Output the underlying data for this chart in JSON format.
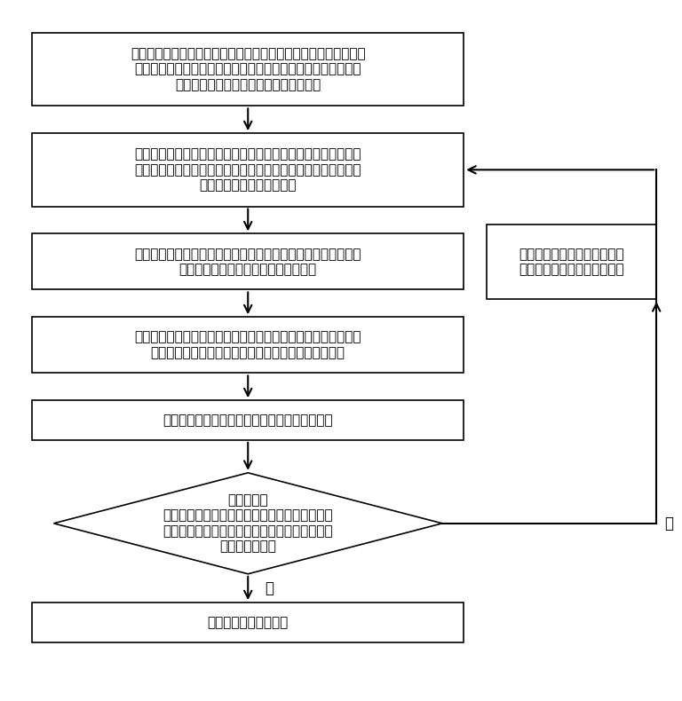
{
  "background_color": "#ffffff",
  "text_color": "#000000",
  "box_border_color": "#000000",
  "arrow_color": "#000000",
  "box1_text": "获取脉冲电源系统的参数，包括脉冲发电机组中脉冲发电机数量、\n脉冲发电机额定储能量、脉冲发电机一次放电能量、脉冲发电机\n无法通过充能电机发电回馈的剩余能量；",
  "box2_text": "基于获取的系统放电信号，将脉冲电源系统中各脉冲发电机分别\n进行放电，并将放电后脉冲发电机组中具有可用剩余能量的脉冲\n发电机作为第一发电机集合",
  "box3_text": "对第一发电机集合中的脉冲发电机进行分组，每组脉冲发电机中\n可用剩余能量之和在设定第一阈值区间",
  "box4_text": "将每一组的脉冲发电机剩余能量分别转移至组中任一脉冲发电机\n，将具有可用剩余能量脉冲发电机作为第二发电机集合",
  "box5_text": "将第二发电机集合中各脉冲发电机分别进行放电",
  "box6_text": "判断放电后\n所有脉冲发电机的可用剩余能量与无法通过充能\n电机发电回馈的剩余能量之和是否大于设定第一\n阈值区间下限？",
  "box7_text": "完成脉冲电源系统放电",
  "boxR_text": "获取具有可用剩余能量的脉冲\n发电机，更新第一发电机集合",
  "label_yes": "是",
  "label_no": "否",
  "fig_width": 9.65,
  "fig_height": 10.0
}
